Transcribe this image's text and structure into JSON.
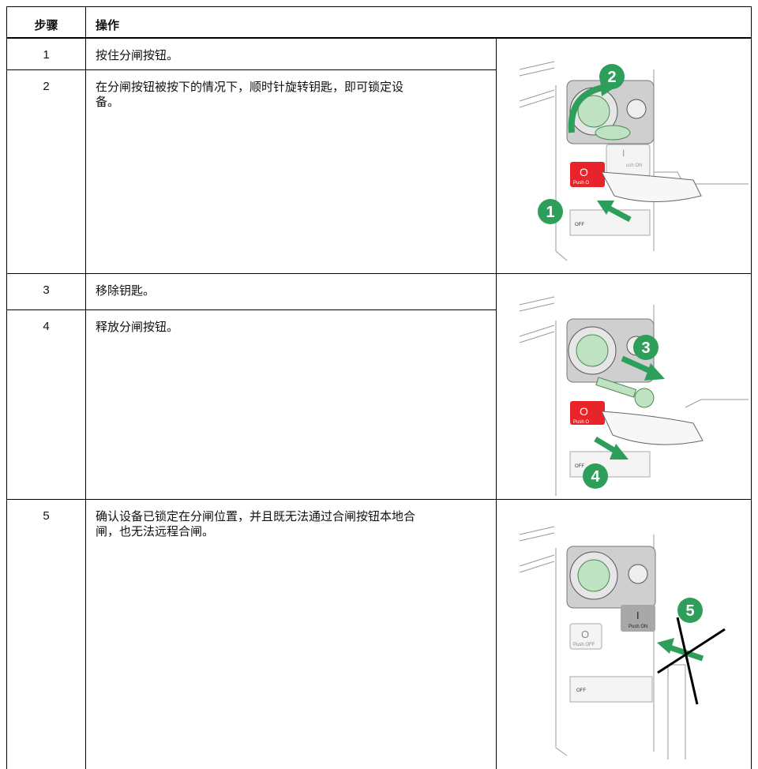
{
  "table": {
    "header": [
      "步骤",
      "操作"
    ],
    "rows": [
      [
        "1",
        "按住分闸按钮。"
      ],
      [
        "2",
        "在分闸按钮被按下的情况下，顺时针旋转钥匙，即可锁定设备。"
      ],
      [
        "3",
        "移除钥匙。"
      ],
      [
        "4",
        "释放分闸按钮。"
      ],
      [
        "5",
        "确认设备已锁定在分闸位置，并且既无法通过合闸按钮本地合闸，也无法远程合闸。"
      ]
    ]
  },
  "illustrations": [
    {
      "callouts": [
        "2",
        "1"
      ],
      "labels": {
        "off_symbol": "O",
        "off_text": "Push O",
        "on_symbol": "I",
        "on_text": "ush ON",
        "lock_text": "OFF"
      }
    },
    {
      "callouts": [
        "3",
        "4"
      ],
      "labels": {
        "off_symbol": "O",
        "off_text": "Push O",
        "lock_text": "OFF"
      }
    },
    {
      "callouts": [
        "5"
      ],
      "labels": {
        "off_symbol": "O",
        "off_text": "Push OFF",
        "on_symbol": "I",
        "on_text": "Push ON",
        "lock_text": "OFF"
      }
    }
  ]
}
